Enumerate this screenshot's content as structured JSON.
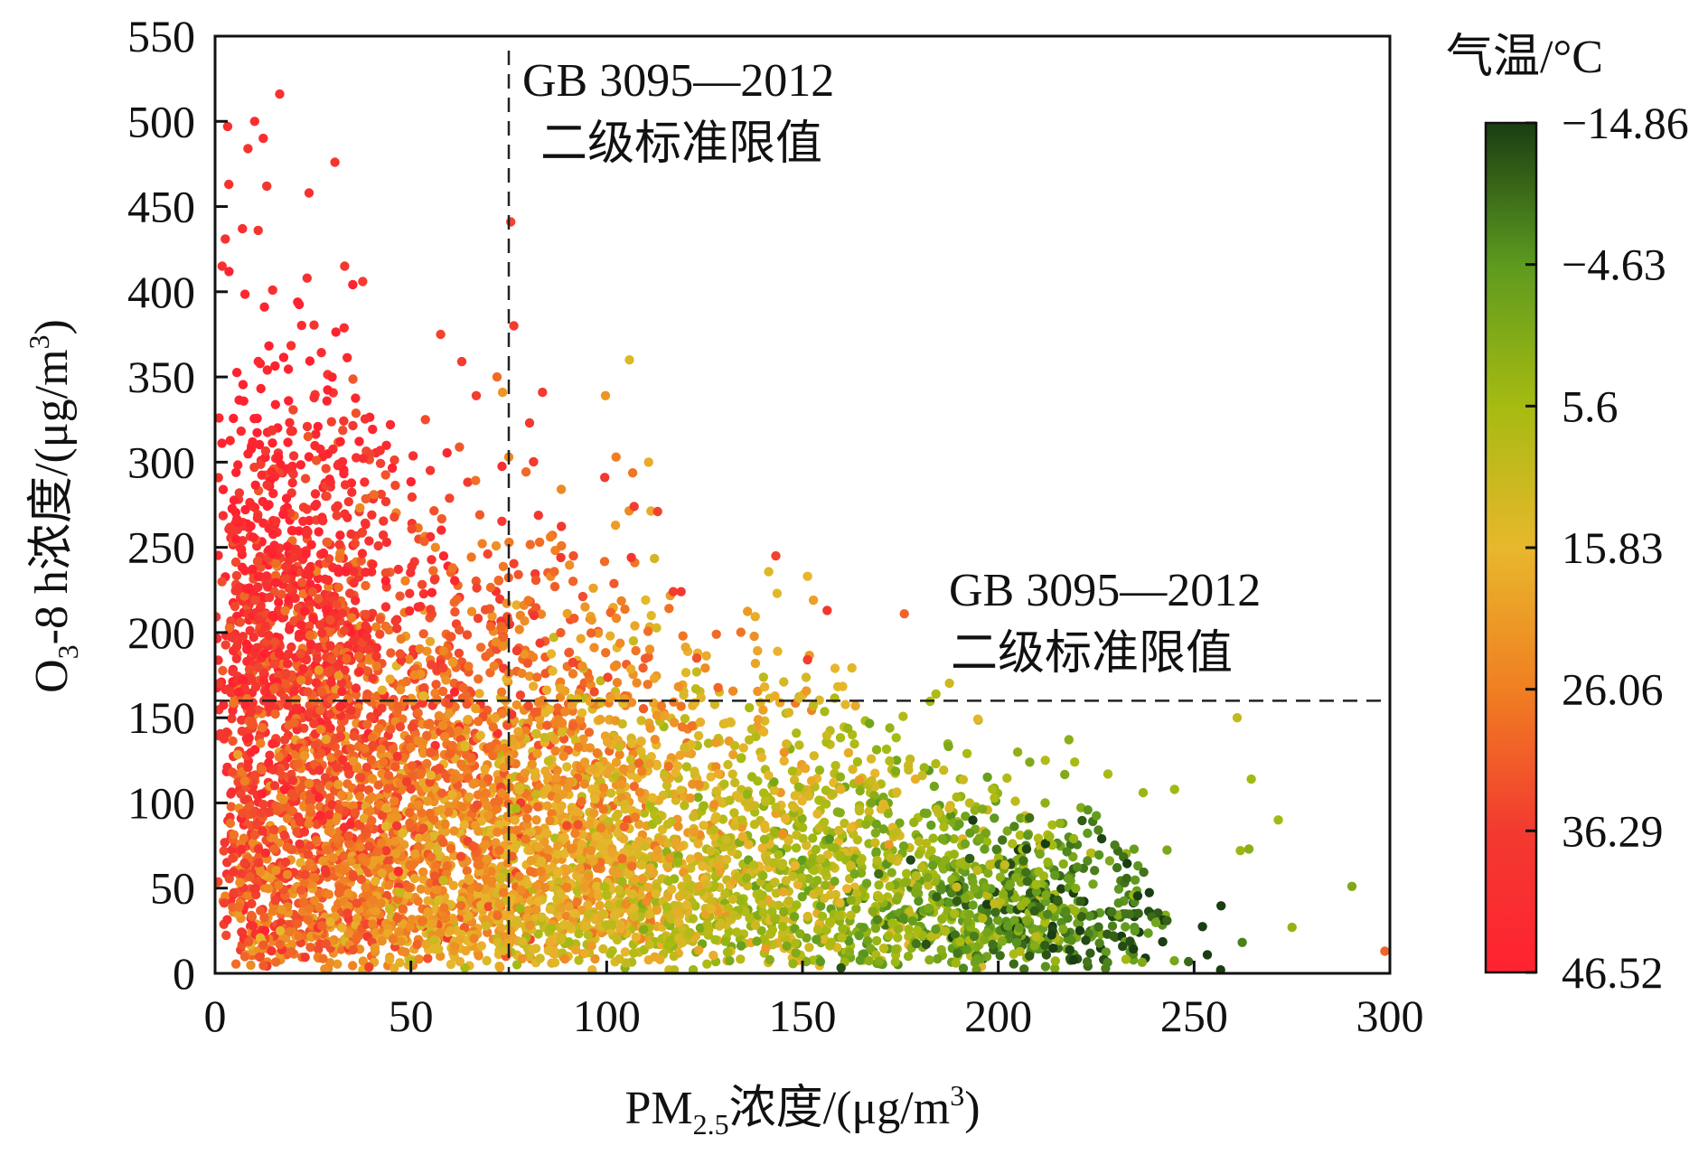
{
  "chart_data": {
    "type": "scatter",
    "xlabel": "PM",
    "xlabel_sub": "2.5",
    "xlabel_rest": "浓度/(μg/m",
    "xlabel_sup": "3",
    "xlabel_end": ")",
    "ylabel": "O",
    "ylabel_sub": "3",
    "ylabel_rest": "-8 h浓度/(μg/m",
    "ylabel_sup": "3",
    "ylabel_end": ")",
    "xlim": [
      0,
      300
    ],
    "ylim": [
      0,
      550
    ],
    "x_ticks": [
      "0",
      "50",
      "100",
      "150",
      "200",
      "250",
      "300"
    ],
    "y_ticks": [
      "0",
      "50",
      "100",
      "150",
      "200",
      "250",
      "300",
      "350",
      "400",
      "450",
      "500",
      "550"
    ],
    "reference_lines": [
      {
        "axis": "x",
        "value": 75,
        "label_line1": "GB 3095—2012",
        "label_line2": "二级标准限值"
      },
      {
        "axis": "y",
        "value": 160,
        "label_line1": "GB 3095—2012",
        "label_line2": "二级标准限值"
      }
    ],
    "colorbar": {
      "title": "气温/°C",
      "min": -14.86,
      "max": 46.52,
      "ticks": [
        "−14.86",
        "−4.63",
        "5.6",
        "15.83",
        "26.06",
        "36.29",
        "46.52"
      ],
      "colors": [
        "#1a3d12",
        "#5d9a1f",
        "#a6bb12",
        "#e8b72c",
        "#f07f22",
        "#f23a30",
        "#ff2230"
      ]
    },
    "color_variable": "气温",
    "point_count_approx": 6000,
    "points": [
      [
        16.5,
        516,
        40
      ],
      [
        3.2,
        497,
        41
      ],
      [
        10.1,
        500,
        40
      ],
      [
        8.4,
        484,
        39
      ],
      [
        12.3,
        490,
        42
      ],
      [
        3.5,
        463,
        40
      ],
      [
        13.2,
        462,
        38
      ],
      [
        24.0,
        458,
        40
      ],
      [
        7.0,
        437,
        41
      ],
      [
        2.6,
        431,
        40
      ],
      [
        30.6,
        476,
        38
      ],
      [
        1.8,
        415,
        41
      ],
      [
        11.0,
        436,
        39
      ],
      [
        33.1,
        415,
        38
      ],
      [
        37.7,
        406,
        36
      ],
      [
        23.5,
        408,
        40
      ],
      [
        14.7,
        401,
        41
      ],
      [
        75.5,
        441,
        35
      ],
      [
        76.3,
        380,
        36
      ],
      [
        57.6,
        375,
        35
      ],
      [
        63.0,
        359,
        36
      ],
      [
        66.7,
        339,
        36
      ],
      [
        72.0,
        350,
        29
      ],
      [
        73.4,
        341,
        22
      ],
      [
        83.6,
        341,
        36
      ],
      [
        80.3,
        323,
        37
      ],
      [
        105.8,
        360,
        14
      ],
      [
        99.7,
        339,
        22
      ],
      [
        102.4,
        303,
        26
      ],
      [
        110.7,
        300,
        18
      ],
      [
        99.5,
        291,
        37
      ],
      [
        107.0,
        274,
        36
      ],
      [
        113.0,
        271,
        35
      ],
      [
        75.0,
        303,
        24
      ],
      [
        88.3,
        244,
        38
      ],
      [
        91.5,
        245,
        33
      ],
      [
        106.3,
        244,
        38
      ],
      [
        143.2,
        245,
        35
      ],
      [
        151.3,
        233,
        16
      ],
      [
        152.8,
        219,
        20
      ],
      [
        176.0,
        211,
        30
      ],
      [
        156.3,
        213,
        38
      ],
      [
        111.4,
        210,
        15
      ],
      [
        117.0,
        224,
        36
      ],
      [
        119.0,
        224,
        37
      ],
      [
        107.2,
        204,
        19
      ],
      [
        128.0,
        199,
        29
      ],
      [
        102.0,
        180,
        24
      ],
      [
        158.3,
        179,
        16
      ],
      [
        151.3,
        184,
        36
      ],
      [
        123.0,
        185,
        33
      ],
      [
        261.0,
        150,
        10
      ],
      [
        264.6,
        114,
        5
      ],
      [
        228.0,
        117,
        6
      ],
      [
        212.0,
        125,
        8
      ],
      [
        219.5,
        124,
        6
      ],
      [
        245.0,
        108,
        5
      ],
      [
        237.0,
        106,
        4
      ],
      [
        290.3,
        51,
        0
      ],
      [
        298.7,
        13,
        30
      ],
      [
        275.0,
        27,
        3
      ],
      [
        271.5,
        90,
        5
      ],
      [
        264.0,
        73,
        2
      ],
      [
        261.8,
        72,
        4
      ]
    ]
  }
}
